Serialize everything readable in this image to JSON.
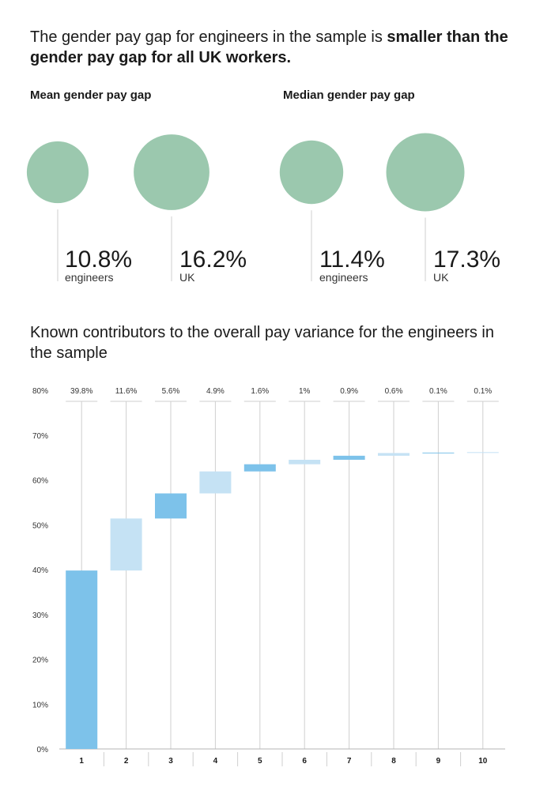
{
  "headline": {
    "normal": "The  gender pay gap for engineers in the sample is ",
    "bold": "smaller than the  gender pay gap for all UK workers."
  },
  "mean_section": {
    "title": "Mean gender pay gap"
  },
  "median_section": {
    "title": "Median gender pay gap"
  },
  "waterfall_title": "Known contributors to the overall pay variance for the engineers in the sample",
  "colors": {
    "bubble": "#9bc8ae",
    "bar_dark": "#7dc2ea",
    "bar_light": "#c5e2f4",
    "guide": "#cfcfcf",
    "text": "#1a1a1a"
  },
  "chart_data": [
    {
      "type": "bubble",
      "title": "Mean gender pay gap",
      "categories": [
        "engineers",
        "UK"
      ],
      "values": [
        10.8,
        16.2
      ],
      "labels": [
        "10.8%",
        "16.2%"
      ]
    },
    {
      "type": "bubble",
      "title": "Median gender pay gap",
      "categories": [
        "engineers",
        "UK"
      ],
      "values": [
        11.4,
        17.3
      ],
      "labels": [
        "11.4%",
        "17.3%"
      ]
    },
    {
      "type": "bar",
      "subtype": "waterfall",
      "title": "Known contributors to the overall pay variance for the engineers in the sample",
      "categories": [
        "1",
        "2",
        "3",
        "4",
        "5",
        "6",
        "7",
        "8",
        "9",
        "10"
      ],
      "values": [
        39.8,
        11.6,
        5.6,
        4.9,
        1.6,
        1,
        0.9,
        0.6,
        0.1,
        0.1
      ],
      "value_labels": [
        "39.8%",
        "11.6%",
        "5.6%",
        "4.9%",
        "1.6%",
        "1%",
        "0.9%",
        "0.6%",
        "0.1%",
        "0.1%"
      ],
      "y_ticks": [
        "0%",
        "10%",
        "20%",
        "30%",
        "40%",
        "50%",
        "60%",
        "70%",
        "80%"
      ],
      "ylim": [
        0,
        80
      ],
      "grid": false,
      "shading": [
        "dark",
        "light",
        "dark",
        "light",
        "dark",
        "light",
        "dark",
        "light",
        "dark",
        "light"
      ]
    }
  ]
}
